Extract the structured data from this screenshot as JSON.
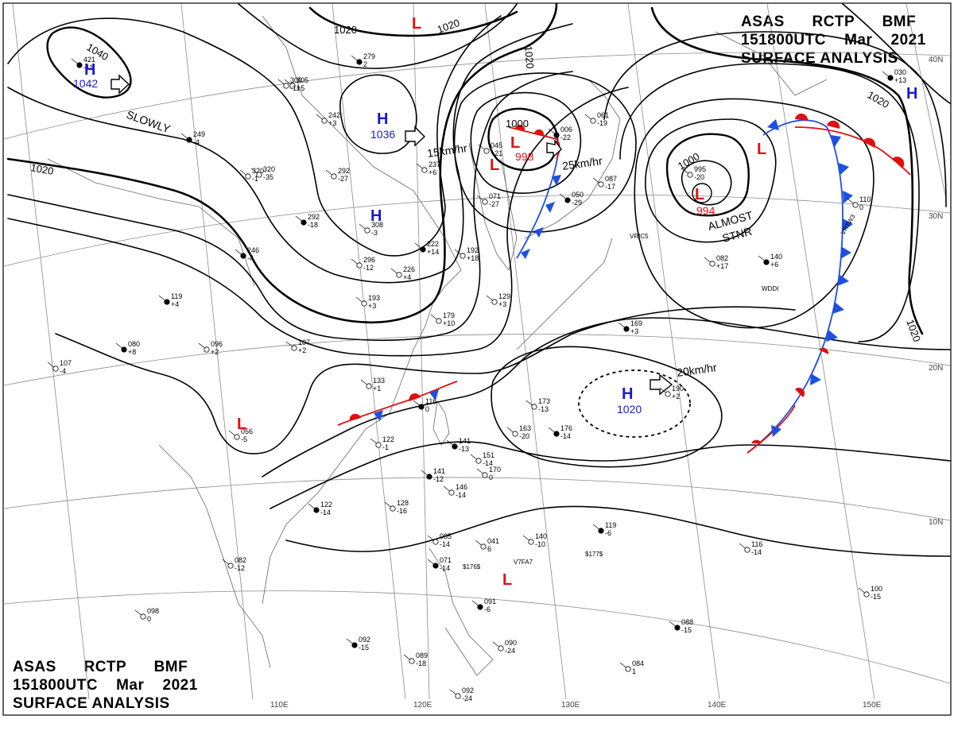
{
  "header_top": {
    "line1": [
      "ASAS",
      "RCTP",
      "BMF"
    ],
    "line2": [
      "151800UTC",
      "Mar",
      "2021"
    ],
    "line3": "SURFACE ANALYSIS"
  },
  "header_bottom": {
    "line1": [
      "ASAS",
      "RCTP",
      "BMF"
    ],
    "line2": [
      "151800UTC",
      "Mar",
      "2021"
    ],
    "line3": "SURFACE ANALYSIS"
  },
  "longitudes": [
    "110E",
    "120E",
    "130E",
    "140E",
    "150E"
  ],
  "latitudes": [
    "40N",
    "30N",
    "20N",
    "10N"
  ],
  "isobar_labels": [
    "1040",
    "1020",
    "1020",
    "1020",
    "1020",
    "1000",
    "1000",
    "1020",
    "1020"
  ],
  "systems": [
    {
      "type": "H",
      "value": "1042",
      "color": "#1a1acc"
    },
    {
      "type": "H",
      "value": "1036",
      "color": "#1a1acc"
    },
    {
      "type": "H",
      "value": "",
      "color": "#1a1acc"
    },
    {
      "type": "H",
      "value": "1020",
      "color": "#1a1acc"
    },
    {
      "type": "H",
      "value": "",
      "color": "#1a1acc"
    },
    {
      "type": "L",
      "value": "998",
      "color": "#e01010"
    },
    {
      "type": "L",
      "value": "994",
      "color": "#e01010"
    },
    {
      "type": "L",
      "value": "",
      "color": "#e01010"
    },
    {
      "type": "L",
      "value": "",
      "color": "#e01010"
    },
    {
      "type": "L",
      "value": "",
      "color": "#e01010"
    },
    {
      "type": "L",
      "value": "",
      "color": "#e01010"
    },
    {
      "type": "L",
      "value": "",
      "color": "#e01010"
    }
  ],
  "annotations": [
    "SLOWLY",
    "15km/hr",
    "25km/hr",
    "ALMOST",
    "STNR",
    "20km/hr"
  ],
  "ship_ids": [
    "VRIC5",
    "VRTW3",
    "WDDI",
    "V7FA7"
  ],
  "stations": [
    [
      "279",
      "2"
    ],
    [
      "305",
      "+5"
    ],
    [
      "242",
      "+3"
    ],
    [
      "249",
      "-4"
    ],
    [
      "320",
      "-1"
    ],
    [
      "292",
      "-27"
    ],
    [
      "292",
      "-18"
    ],
    [
      "308",
      "-3"
    ],
    [
      "296",
      "-12"
    ],
    [
      "246",
      "-4"
    ],
    [
      "193",
      "+3"
    ],
    [
      "226",
      "+4"
    ],
    [
      "222",
      "+14"
    ],
    [
      "192",
      "+18"
    ],
    [
      "179",
      "+10"
    ],
    [
      "119",
      "+4"
    ],
    [
      "096",
      "+2"
    ],
    [
      "107",
      "+2"
    ],
    [
      "080",
      "+8"
    ],
    [
      "107",
      "-4"
    ],
    [
      "133",
      "+1"
    ],
    [
      "116",
      "0"
    ],
    [
      "056",
      "-5"
    ],
    [
      "122",
      "-1"
    ],
    [
      "141",
      "-13"
    ],
    [
      "151",
      "-14"
    ],
    [
      "170",
      "0"
    ],
    [
      "141",
      "-12"
    ],
    [
      "146",
      "-14"
    ],
    [
      "128",
      "-16"
    ],
    [
      "122",
      "-14"
    ],
    [
      "082",
      "-12"
    ],
    [
      "098",
      "0"
    ],
    [
      "092",
      "-15"
    ],
    [
      "089",
      "-18"
    ],
    [
      "085",
      "-14"
    ],
    [
      "071",
      "-14"
    ],
    [
      "041",
      "6"
    ],
    [
      "140",
      "-10"
    ],
    [
      "119",
      "-6"
    ],
    [
      "116",
      "-14"
    ],
    [
      "100",
      "-15"
    ],
    [
      "088",
      "-15"
    ],
    [
      "084",
      "1"
    ],
    [
      "092",
      "-24"
    ],
    [
      "091",
      "-6"
    ],
    [
      "090",
      "-24"
    ],
    [
      "045",
      "+21"
    ],
    [
      "006",
      "-22"
    ],
    [
      "061",
      "-19"
    ],
    [
      "087",
      "-17"
    ],
    [
      "050",
      "-29"
    ],
    [
      "071",
      "-27"
    ],
    [
      "129",
      "+3"
    ],
    [
      "169",
      "+3"
    ],
    [
      "173",
      "-13"
    ],
    [
      "163",
      "-20"
    ],
    [
      "176",
      "-14"
    ],
    [
      "190",
      "+2"
    ],
    [
      "082",
      "+17"
    ],
    [
      "140",
      "+6"
    ],
    [
      "110",
      "0"
    ],
    [
      "995",
      "-20"
    ],
    [
      "030",
      "+13"
    ],
    [
      "300",
      "-11"
    ],
    [
      "320",
      "-35"
    ],
    [
      "421",
      "-11"
    ],
    [
      "237",
      "+6"
    ]
  ],
  "misc_text": [
    "$176$",
    "$177$"
  ],
  "colors": {
    "high": "#1a1acc",
    "low": "#e01010",
    "cold_front": "#1e50e0",
    "warm_front": "#e01010"
  }
}
